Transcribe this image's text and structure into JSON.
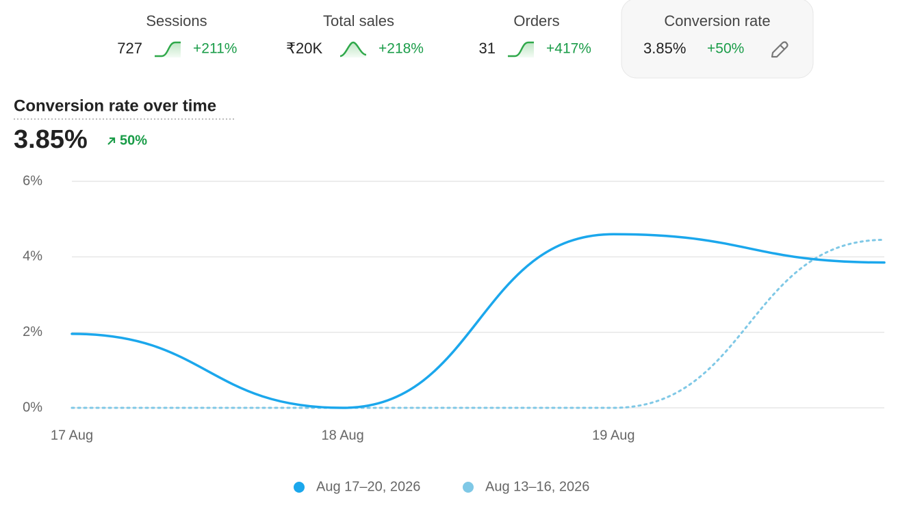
{
  "metrics": [
    {
      "label": "Sessions",
      "value": "727",
      "change": "+211%"
    },
    {
      "label": "Total sales",
      "value": "₹20K",
      "change": "+218%"
    },
    {
      "label": "Orders",
      "value": "31",
      "change": "+417%"
    },
    {
      "label": "Conversion rate",
      "value": "3.85%",
      "change": "+50%"
    }
  ],
  "summary": {
    "value": "3.85%",
    "change": "50%"
  },
  "chart_data": {
    "type": "line",
    "title": "Conversion rate over time",
    "categories": [
      "17 Aug",
      "18 Aug",
      "19 Aug",
      null
    ],
    "series": [
      {
        "name": "Aug 17–20, 2026",
        "color": "#1ba7ec",
        "values": [
          1.96,
          0,
          4.6,
          3.85
        ]
      },
      {
        "name": "Aug 13–16, 2026",
        "color": "#7fc8e6",
        "values": [
          0,
          0,
          0,
          4.45
        ],
        "dashed": true
      }
    ],
    "ylim": [
      0,
      6
    ],
    "yticks": [
      {
        "value": 0,
        "label": "0%"
      },
      {
        "value": 2,
        "label": "2%"
      },
      {
        "value": 4,
        "label": "4%"
      },
      {
        "value": 6,
        "label": "6%"
      }
    ],
    "grid": true,
    "legend": "bottom"
  }
}
